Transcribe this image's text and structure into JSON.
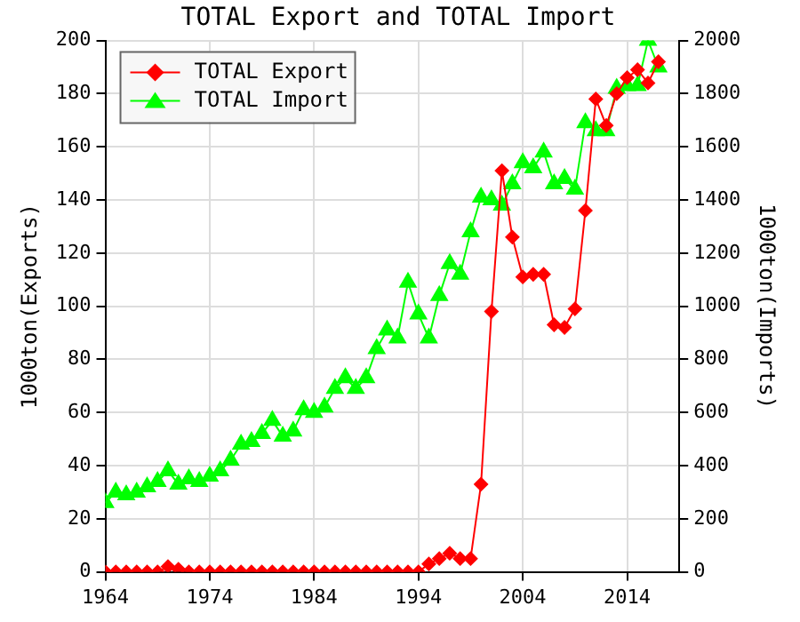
{
  "chart_data": {
    "type": "line",
    "title": "TOTAL Export and TOTAL Import",
    "ylabel": "1000ton(Exports)",
    "y2label": "1000ton(Imports)",
    "x": [
      1964,
      1965,
      1966,
      1967,
      1968,
      1969,
      1970,
      1971,
      1972,
      1973,
      1974,
      1975,
      1976,
      1977,
      1978,
      1979,
      1980,
      1981,
      1982,
      1983,
      1984,
      1985,
      1986,
      1987,
      1988,
      1989,
      1990,
      1991,
      1992,
      1993,
      1994,
      1995,
      1996,
      1997,
      1998,
      1999,
      2000,
      2001,
      2002,
      2003,
      2004,
      2005,
      2006,
      2007,
      2008,
      2009,
      2010,
      2011,
      2012,
      2013,
      2014,
      2015,
      2016,
      2017
    ],
    "series": [
      {
        "name": "TOTAL Export",
        "color": "#ff0000",
        "marker": "diamond",
        "values": [
          0,
          0,
          0,
          0,
          0,
          0,
          2,
          1,
          0,
          0,
          0,
          0,
          0,
          0,
          0,
          0,
          0,
          0,
          0,
          0,
          0,
          0,
          0,
          0,
          0,
          0,
          0,
          0,
          0,
          0,
          0,
          3,
          5,
          7,
          5,
          5,
          33,
          98,
          151,
          126,
          111,
          112,
          112,
          93,
          92,
          99,
          136,
          178,
          168,
          180,
          186,
          189,
          184,
          192
        ]
      },
      {
        "name": "TOTAL Import",
        "color": "#00ff00",
        "marker": "triangle",
        "axis": "y2",
        "values": [
          260,
          300,
          290,
          300,
          320,
          340,
          380,
          330,
          350,
          340,
          360,
          380,
          420,
          480,
          490,
          520,
          570,
          510,
          530,
          610,
          600,
          620,
          690,
          730,
          690,
          730,
          840,
          910,
          880,
          1090,
          970,
          880,
          1040,
          1160,
          1120,
          1280,
          1410,
          1400,
          1380,
          1460,
          1540,
          1520,
          1580,
          1460,
          1480,
          1440,
          1690,
          1660,
          1660,
          1820,
          1830,
          1830,
          2000,
          1900
        ]
      }
    ],
    "xlim": [
      1964,
      2019
    ],
    "xticks": [
      1964,
      1974,
      1984,
      1994,
      2004,
      2014
    ],
    "ylim": [
      0,
      200
    ],
    "yticks": [
      0,
      20,
      40,
      60,
      80,
      100,
      120,
      140,
      160,
      180,
      200
    ],
    "y2lim": [
      0,
      2000
    ],
    "y2ticks": [
      0,
      200,
      400,
      600,
      800,
      1000,
      1200,
      1400,
      1600,
      1800,
      2000
    ],
    "grid": true,
    "legend": "top left",
    "line_style": "solid"
  }
}
